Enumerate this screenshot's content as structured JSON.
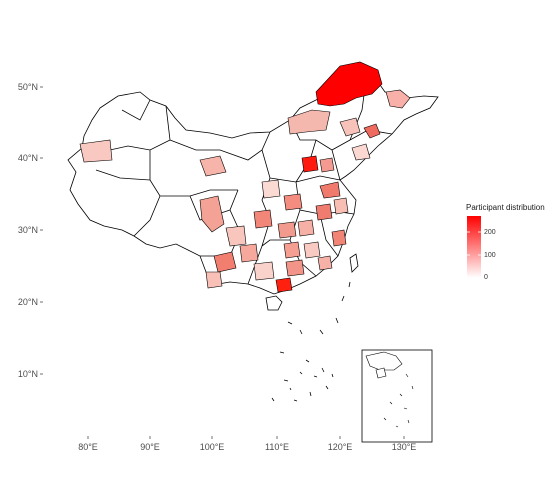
{
  "colors": {
    "low": "#ffffff",
    "high": "#ff0000",
    "border": "#000000"
  },
  "axis": {
    "lat_ticks": [
      "10°N",
      "20°N",
      "30°N",
      "40°N",
      "50°N"
    ],
    "lon_ticks": [
      "80°E",
      "90°E",
      "100°E",
      "110°E",
      "120°E"
    ],
    "inset_lon_tick": "130°E"
  },
  "legend": {
    "title": "Participant distribution",
    "ticks": [
      "0",
      "100",
      "200"
    ],
    "range": [
      0,
      270
    ]
  },
  "chart_data": {
    "type": "choropleth",
    "variable": "Participant distribution",
    "scale": {
      "min": 0,
      "max": 270,
      "low_color": "#ffffff",
      "high_color": "#ff0000"
    },
    "highlighted_regions": [
      {
        "region": "Hulunbuir (Inner Mongolia, far north-east)",
        "value": 270
      },
      {
        "region": "Haikou (Hainan)",
        "value": 240
      },
      {
        "region": "Central Shanxi",
        "value": 230
      },
      {
        "region": "Heilongjiang area",
        "value": 200
      }
    ]
  }
}
